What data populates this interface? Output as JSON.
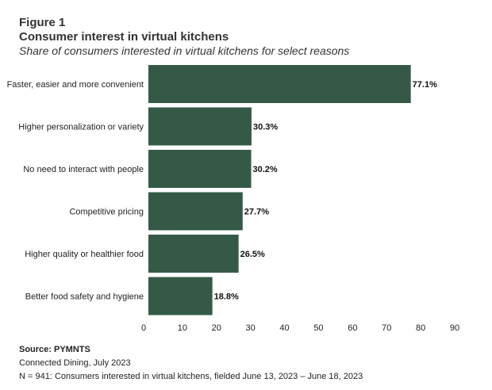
{
  "figure_label": "Figure 1",
  "colors": {
    "bar": "#345a47",
    "text": "#222222"
  },
  "chart_data": {
    "type": "bar",
    "orientation": "horizontal",
    "title": "Consumer interest in virtual kitchens",
    "subtitle": "Share of consumers interested in virtual kitchens for select reasons",
    "categories": [
      "Faster, easier and more convenient",
      "Higher personalization or variety",
      "No need to interact with people",
      "Competitive pricing",
      "Higher quality or healthier food",
      "Better food safety and hygiene"
    ],
    "values": [
      77.1,
      30.3,
      30.2,
      27.7,
      26.5,
      18.8
    ],
    "value_labels": [
      "77.1%",
      "30.3%",
      "30.2%",
      "27.7%",
      "26.5%",
      "18.8%"
    ],
    "xlim": [
      0,
      90
    ],
    "xticks": [
      0,
      10,
      20,
      30,
      40,
      50,
      60,
      70,
      80,
      90
    ],
    "grid": false,
    "legend": false
  },
  "footer": {
    "source": "Source: PYMNTS",
    "publication": "Connected Dining, July 2023",
    "note": "N = 941: Consumers interested in virtual kitchens, fielded June 13, 2023 – June 18, 2023"
  }
}
